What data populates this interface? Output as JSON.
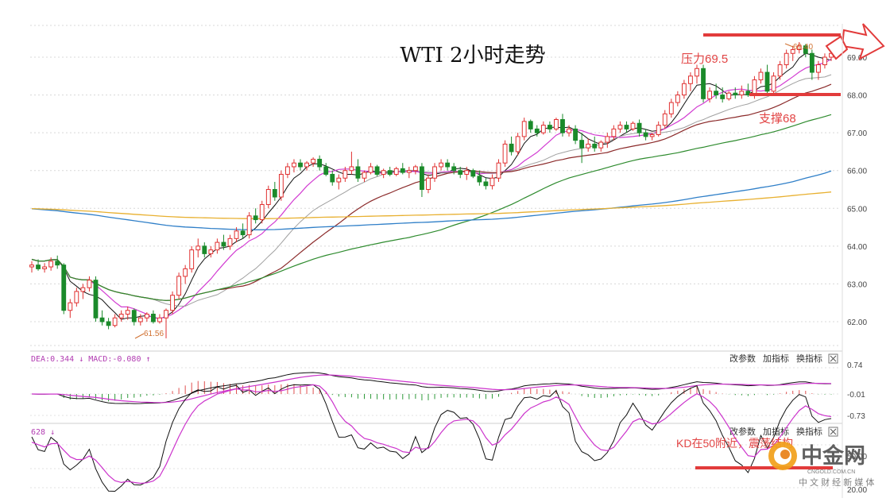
{
  "chart_data": [
    {
      "type": "candlestick",
      "title": "WTI 2小时走势",
      "ylim": [
        61.3,
        69.6
      ],
      "y_ticks": [
        "69.00",
        "68.00",
        "67.00",
        "66.00",
        "65.00",
        "64.00",
        "63.00",
        "62.00"
      ],
      "y_tick_values": [
        69,
        68,
        67,
        66,
        65,
        64,
        63,
        62
      ],
      "grid": true,
      "candles": [
        [
          63.45,
          63.6,
          63.3,
          63.5
        ],
        [
          63.5,
          63.65,
          63.35,
          63.4
        ],
        [
          63.4,
          63.55,
          63.3,
          63.45
        ],
        [
          63.45,
          63.7,
          63.35,
          63.6
        ],
        [
          63.6,
          63.75,
          63.4,
          63.5
        ],
        [
          63.5,
          63.55,
          62.2,
          62.3
        ],
        [
          62.3,
          62.6,
          62.1,
          62.5
        ],
        [
          62.5,
          62.9,
          62.4,
          62.8
        ],
        [
          62.8,
          63.0,
          62.6,
          62.9
        ],
        [
          62.9,
          63.2,
          62.8,
          63.1
        ],
        [
          63.1,
          63.2,
          62.0,
          62.1
        ],
        [
          62.1,
          62.3,
          61.9,
          62.0
        ],
        [
          62.0,
          62.1,
          61.8,
          61.9
        ],
        [
          61.9,
          62.2,
          61.85,
          62.1
        ],
        [
          62.1,
          62.3,
          62.0,
          62.2
        ],
        [
          62.2,
          62.4,
          62.05,
          62.3
        ],
        [
          62.3,
          62.35,
          61.9,
          62.0
        ],
        [
          62.0,
          62.2,
          61.9,
          62.1
        ],
        [
          62.1,
          62.25,
          62.0,
          62.2
        ],
        [
          62.2,
          62.3,
          61.95,
          62.0
        ],
        [
          62.0,
          62.2,
          61.95,
          62.1
        ],
        [
          62.1,
          62.35,
          61.56,
          62.3
        ],
        [
          62.3,
          62.8,
          62.2,
          62.7
        ],
        [
          62.7,
          63.3,
          62.6,
          63.2
        ],
        [
          63.2,
          63.5,
          63.0,
          63.4
        ],
        [
          63.4,
          64.0,
          63.3,
          63.9
        ],
        [
          63.9,
          64.2,
          63.7,
          64.0
        ],
        [
          64.0,
          64.1,
          63.7,
          63.8
        ],
        [
          63.8,
          64.0,
          63.7,
          63.9
        ],
        [
          63.9,
          64.2,
          63.8,
          64.1
        ],
        [
          64.1,
          64.3,
          63.9,
          64.0
        ],
        [
          64.0,
          64.3,
          63.9,
          64.2
        ],
        [
          64.2,
          64.5,
          64.1,
          64.4
        ],
        [
          64.4,
          64.6,
          64.2,
          64.3
        ],
        [
          64.3,
          64.9,
          64.2,
          64.8
        ],
        [
          64.8,
          65.0,
          64.6,
          64.7
        ],
        [
          64.7,
          65.2,
          64.6,
          65.1
        ],
        [
          65.1,
          65.6,
          65.0,
          65.5
        ],
        [
          65.5,
          65.7,
          65.2,
          65.3
        ],
        [
          65.3,
          66.0,
          65.2,
          65.9
        ],
        [
          65.9,
          66.2,
          65.8,
          66.1
        ],
        [
          66.1,
          66.3,
          65.95,
          66.2
        ],
        [
          66.2,
          66.3,
          66.0,
          66.1
        ],
        [
          66.1,
          66.25,
          66.0,
          66.2
        ],
        [
          66.2,
          66.35,
          66.1,
          66.3
        ],
        [
          66.3,
          66.4,
          66.0,
          66.1
        ],
        [
          66.1,
          66.2,
          65.85,
          65.9
        ],
        [
          65.9,
          66.0,
          65.6,
          65.7
        ],
        [
          65.7,
          65.9,
          65.5,
          65.8
        ],
        [
          65.8,
          66.1,
          65.7,
          66.0
        ],
        [
          66.0,
          66.5,
          65.9,
          66.1
        ],
        [
          66.1,
          66.3,
          65.7,
          65.8
        ],
        [
          65.8,
          66.0,
          65.7,
          65.95
        ],
        [
          65.95,
          66.2,
          65.9,
          66.1
        ],
        [
          66.1,
          66.15,
          65.85,
          65.9
        ],
        [
          65.9,
          66.05,
          65.8,
          66.0
        ],
        [
          66.0,
          66.1,
          65.85,
          65.9
        ],
        [
          65.9,
          66.1,
          65.85,
          66.05
        ],
        [
          66.05,
          66.2,
          65.9,
          65.95
        ],
        [
          65.95,
          66.1,
          65.8,
          66.0
        ],
        [
          66.0,
          66.15,
          65.9,
          66.1
        ],
        [
          66.1,
          66.2,
          65.3,
          65.5
        ],
        [
          65.5,
          65.9,
          65.4,
          65.8
        ],
        [
          65.8,
          66.2,
          65.7,
          66.1
        ],
        [
          66.1,
          66.3,
          66.0,
          66.2
        ],
        [
          66.2,
          66.3,
          66.0,
          66.1
        ],
        [
          66.1,
          66.2,
          65.9,
          66.0
        ],
        [
          66.0,
          66.1,
          65.8,
          65.9
        ],
        [
          65.9,
          66.1,
          65.75,
          66.0
        ],
        [
          66.0,
          66.05,
          65.8,
          65.85
        ],
        [
          65.85,
          66.0,
          65.6,
          65.7
        ],
        [
          65.7,
          65.8,
          65.5,
          65.6
        ],
        [
          65.6,
          65.9,
          65.5,
          65.8
        ],
        [
          65.8,
          66.3,
          65.7,
          66.2
        ],
        [
          66.2,
          66.8,
          66.1,
          66.7
        ],
        [
          66.7,
          66.9,
          66.4,
          66.5
        ],
        [
          66.5,
          67.0,
          66.4,
          66.9
        ],
        [
          66.9,
          67.4,
          66.8,
          67.3
        ],
        [
          67.3,
          67.35,
          67.0,
          67.1
        ],
        [
          67.1,
          67.2,
          66.9,
          67.0
        ],
        [
          67.0,
          67.3,
          66.95,
          67.2
        ],
        [
          67.2,
          67.3,
          67.0,
          67.1
        ],
        [
          67.1,
          67.4,
          67.05,
          67.35
        ],
        [
          67.35,
          67.5,
          66.9,
          67.0
        ],
        [
          67.0,
          67.2,
          66.9,
          67.1
        ],
        [
          67.1,
          67.2,
          66.7,
          66.8
        ],
        [
          66.8,
          67.0,
          66.2,
          66.6
        ],
        [
          66.6,
          66.85,
          66.5,
          66.7
        ],
        [
          66.7,
          66.9,
          66.5,
          66.6
        ],
        [
          66.6,
          66.8,
          66.5,
          66.75
        ],
        [
          66.75,
          67.0,
          66.6,
          66.9
        ],
        [
          66.9,
          67.2,
          66.8,
          67.1
        ],
        [
          67.1,
          67.3,
          67.0,
          67.2
        ],
        [
          67.2,
          67.3,
          67.0,
          67.1
        ],
        [
          67.1,
          67.3,
          67.05,
          67.25
        ],
        [
          67.25,
          67.35,
          66.9,
          67.0
        ],
        [
          67.0,
          67.1,
          66.8,
          66.9
        ],
        [
          66.9,
          67.0,
          66.8,
          66.95
        ],
        [
          66.95,
          67.3,
          66.9,
          67.2
        ],
        [
          67.2,
          67.6,
          67.1,
          67.5
        ],
        [
          67.5,
          67.9,
          67.4,
          67.8
        ],
        [
          67.8,
          68.1,
          67.7,
          68.0
        ],
        [
          68.0,
          68.4,
          67.9,
          68.3
        ],
        [
          68.3,
          68.6,
          68.1,
          68.5
        ],
        [
          68.5,
          68.8,
          68.3,
          68.7
        ],
        [
          68.7,
          68.8,
          67.8,
          67.9
        ],
        [
          67.9,
          68.2,
          67.8,
          68.1
        ],
        [
          68.1,
          68.3,
          67.9,
          68.0
        ],
        [
          68.0,
          68.2,
          67.8,
          67.9
        ],
        [
          67.9,
          68.1,
          67.85,
          68.05
        ],
        [
          68.05,
          68.2,
          67.9,
          68.0
        ],
        [
          68.0,
          68.25,
          67.9,
          68.1
        ],
        [
          68.1,
          68.3,
          67.95,
          68.0
        ],
        [
          68.0,
          68.5,
          67.9,
          68.4
        ],
        [
          68.4,
          68.7,
          68.3,
          68.6
        ],
        [
          68.6,
          68.8,
          68.0,
          68.1
        ],
        [
          68.1,
          68.6,
          68.0,
          68.5
        ],
        [
          68.5,
          68.9,
          68.4,
          68.8
        ],
        [
          68.8,
          69.2,
          68.7,
          69.1
        ],
        [
          69.1,
          69.3,
          68.9,
          69.2
        ],
        [
          69.2,
          69.4,
          69.1,
          69.3
        ],
        [
          69.3,
          69.35,
          69.0,
          69.1
        ],
        [
          69.1,
          69.2,
          68.4,
          68.6
        ],
        [
          68.6,
          68.9,
          68.4,
          68.8
        ],
        [
          68.8,
          69.1,
          68.7,
          69.0
        ],
        [
          69.0,
          69.2,
          68.9,
          69.1
        ]
      ],
      "annotations": {
        "high_label": "69.40",
        "low_label": "61.56",
        "resistance": "压力69.5",
        "support": "支撑68",
        "resistance_level": 69.5,
        "support_level": 68
      }
    },
    {
      "type": "macd",
      "header": "DEA:0.344 ↓  MACD:-0.080 ↑",
      "y_ticks": [
        "0.74",
        "-0.01",
        "-0.73"
      ],
      "buttons": [
        "改参数",
        "加指标",
        "换指标"
      ]
    },
    {
      "type": "kd",
      "header": "628 ↓",
      "y_ticks": [
        "50.00",
        "20.00"
      ],
      "annotation": "KD在50附近，震荡结构",
      "buttons": [
        "改参数",
        "加指标",
        "换指标"
      ]
    }
  ],
  "watermark": {
    "brand": "中金网",
    "domain": "CNGOLD.COM.CN",
    "tagline": "中 文 财 经 新 媒 体"
  },
  "colors": {
    "up": "#e03030",
    "down": "#1a8a2a",
    "annotation": "#e24545",
    "kd_k": "#111111",
    "kd_d": "#cc33cc"
  }
}
